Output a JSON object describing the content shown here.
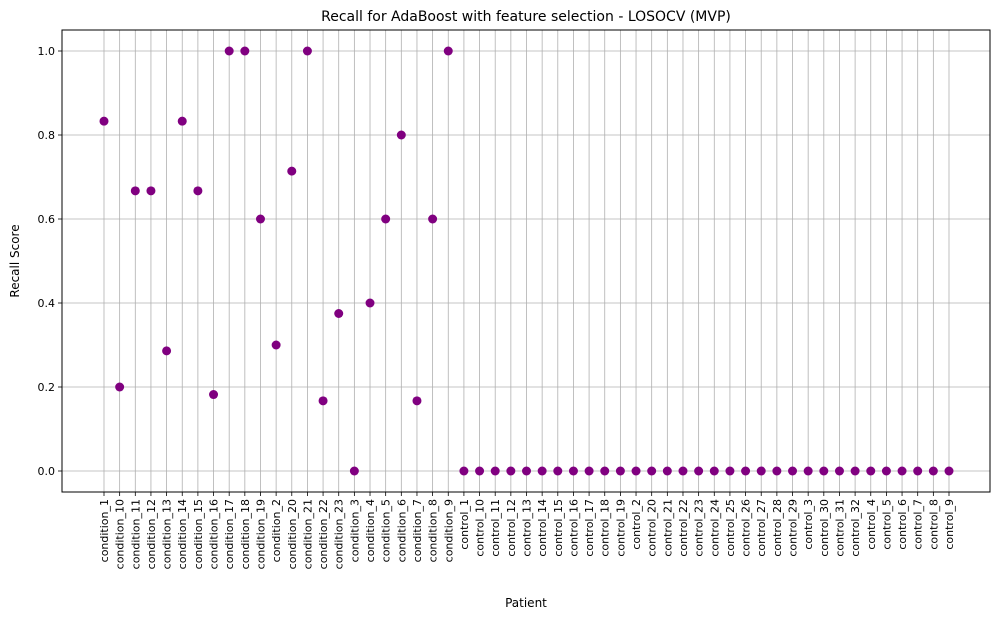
{
  "chart_data": {
    "type": "scatter",
    "title": "Recall for AdaBoost with feature selection - LOSOCV (MVP)",
    "xlabel": "Patient",
    "ylabel": "Recall Score",
    "ylim": [
      -0.05,
      1.05
    ],
    "yticks": [
      "0.0",
      "0.2",
      "0.4",
      "0.6",
      "0.8",
      "1.0"
    ],
    "grid": true,
    "marker_color": "#800080",
    "categories": [
      "condition_1",
      "condition_10",
      "condition_11",
      "condition_12",
      "condition_13",
      "condition_14",
      "condition_15",
      "condition_16",
      "condition_17",
      "condition_18",
      "condition_19",
      "condition_2",
      "condition_20",
      "condition_21",
      "condition_22",
      "condition_23",
      "condition_3",
      "condition_4",
      "condition_5",
      "condition_6",
      "condition_7",
      "condition_8",
      "condition_9",
      "control_1",
      "control_10",
      "control_11",
      "control_12",
      "control_13",
      "control_14",
      "control_15",
      "control_16",
      "control_17",
      "control_18",
      "control_19",
      "control_2",
      "control_20",
      "control_21",
      "control_22",
      "control_23",
      "control_24",
      "control_25",
      "control_26",
      "control_27",
      "control_28",
      "control_29",
      "control_3",
      "control_30",
      "control_31",
      "control_32",
      "control_4",
      "control_5",
      "control_6",
      "control_7",
      "control_8",
      "control_9"
    ],
    "values": [
      0.833,
      0.2,
      0.667,
      0.667,
      0.286,
      0.833,
      0.667,
      0.182,
      1.0,
      1.0,
      0.6,
      0.3,
      0.714,
      1.0,
      0.167,
      0.375,
      0.0,
      0.4,
      0.6,
      0.8,
      0.167,
      0.6,
      1.0,
      0,
      0,
      0,
      0,
      0,
      0,
      0,
      0,
      0,
      0,
      0,
      0,
      0,
      0,
      0,
      0,
      0,
      0,
      0,
      0,
      0,
      0,
      0,
      0,
      0,
      0,
      0,
      0,
      0,
      0,
      0,
      0
    ]
  }
}
